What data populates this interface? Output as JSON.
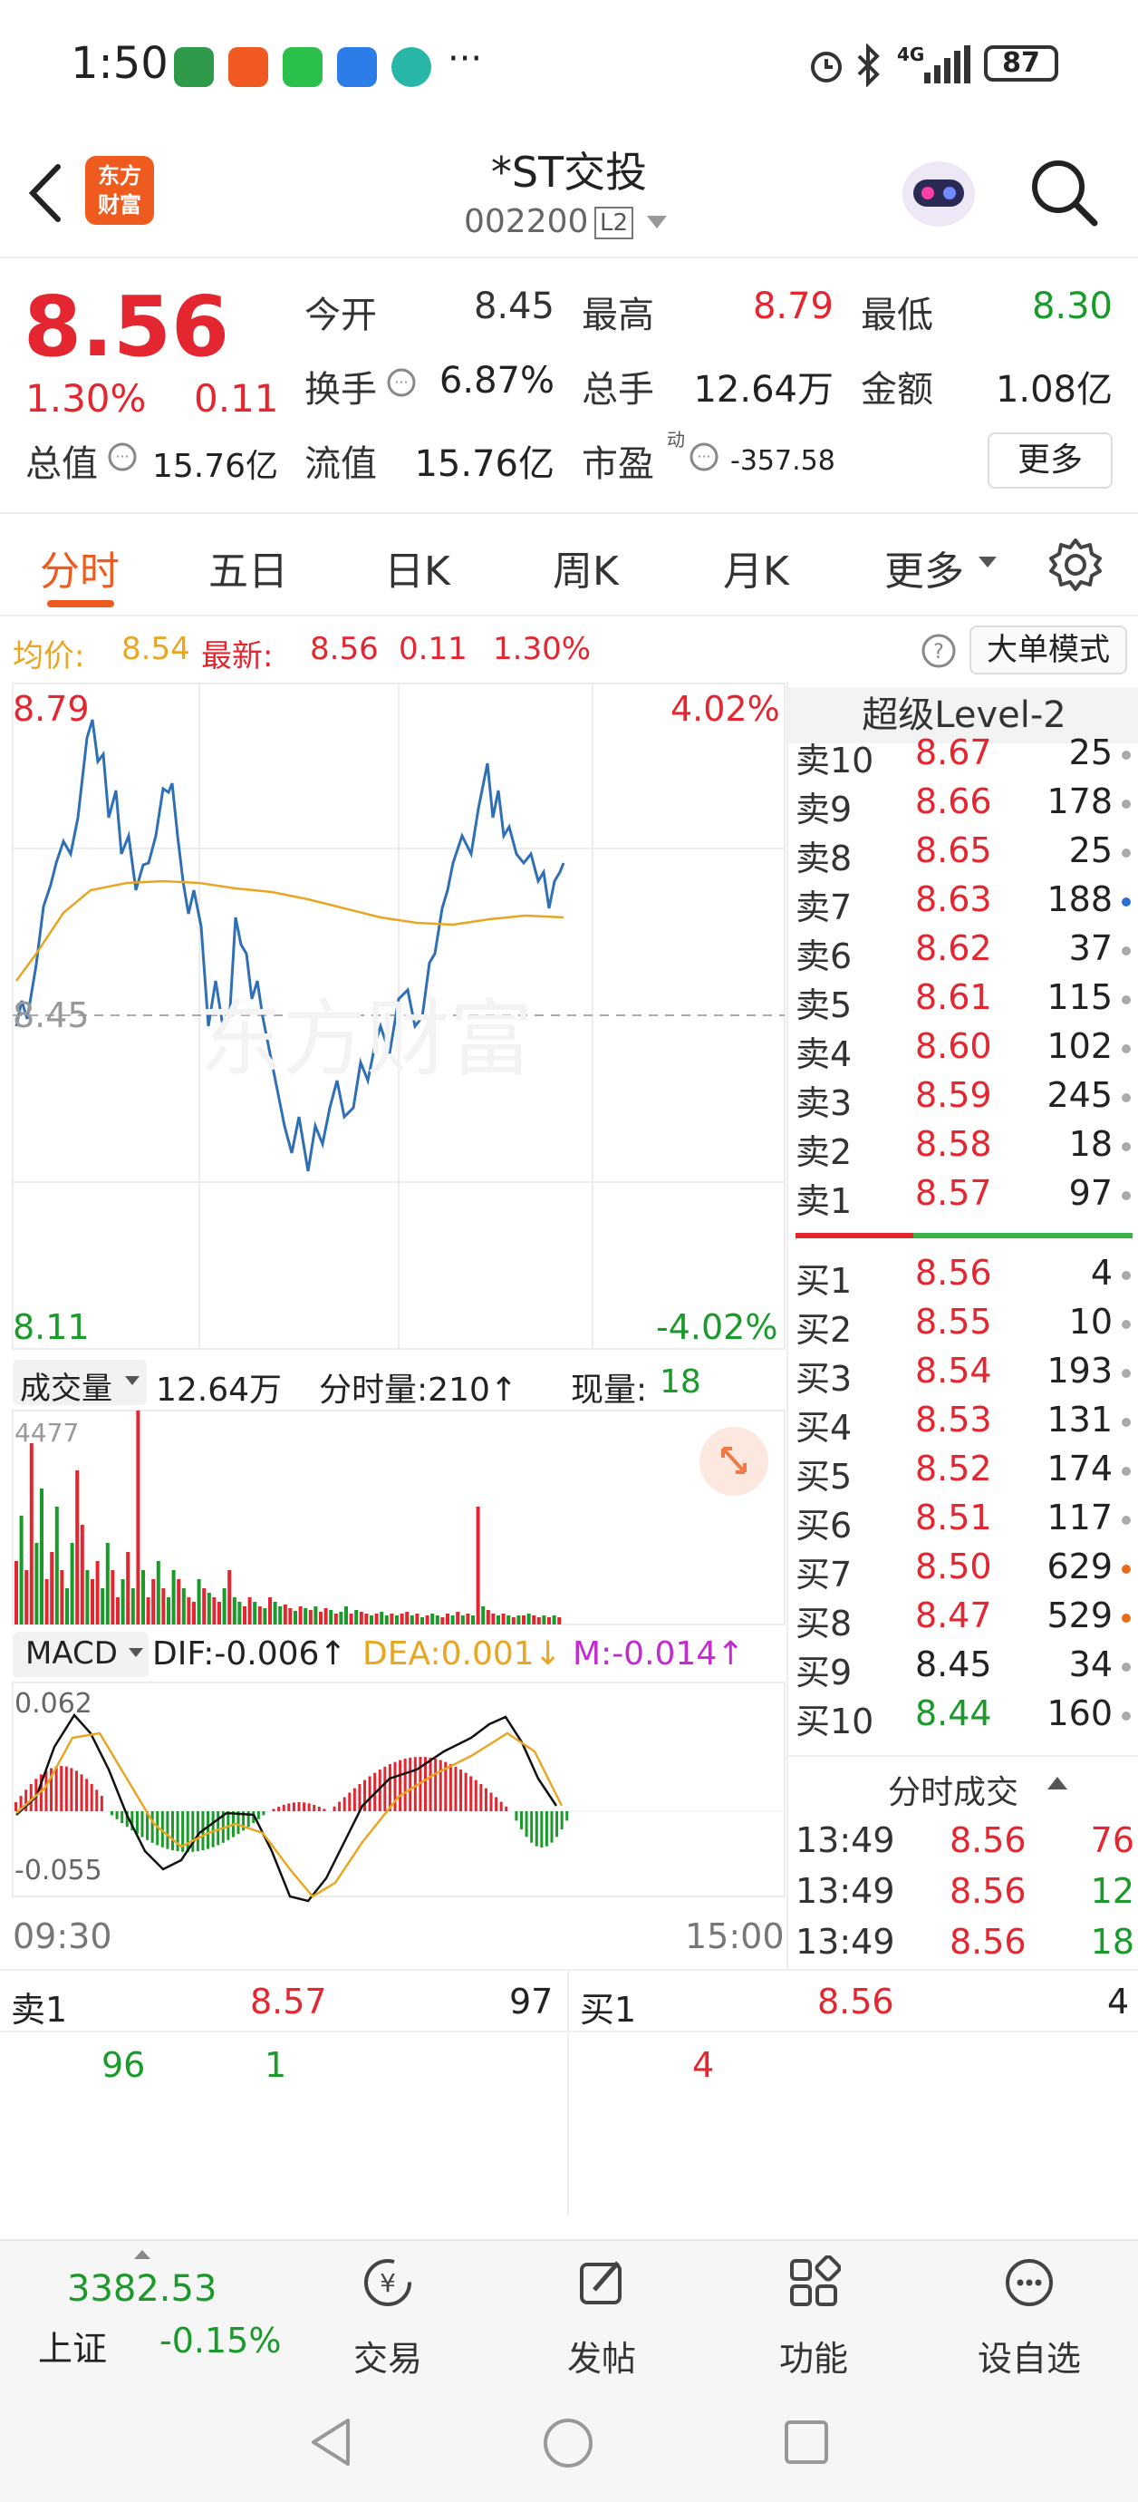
{
  "status": {
    "time": "1:50",
    "battery": "87",
    "network": "4G"
  },
  "header": {
    "logo_text_1": "东方",
    "logo_text_2": "财富",
    "stock_name": "*ST交投",
    "stock_code": "002200",
    "level_badge": "L2"
  },
  "quote": {
    "price": "8.56",
    "change_pct": "1.30%",
    "change": "0.11",
    "open_label": "今开",
    "open": "8.45",
    "high_label": "最高",
    "high": "8.79",
    "low_label": "最低",
    "low": "8.30",
    "turnover_label": "换手",
    "turnover": "6.87%",
    "volume_label": "总手",
    "volume": "12.64万",
    "amount_label": "金额",
    "amount": "1.08亿",
    "total_mv_label": "总值",
    "total_mv": "15.76亿",
    "float_mv_label": "流值",
    "float_mv": "15.76亿",
    "pe_label": "市盈",
    "pe_sup": "动",
    "pe": "-357.58",
    "more_button": "更多"
  },
  "tabs": [
    "分时",
    "五日",
    "日K",
    "周K",
    "月K",
    "更多"
  ],
  "infoline": {
    "avg_label": "均价:",
    "avg": "8.54",
    "latest_label": "最新:",
    "latest": "8.56",
    "latest_change": "0.11",
    "latest_pct": "1.30%",
    "mode_button": "大单模式"
  },
  "chart": {
    "price_top": "8.79",
    "pct_top": "4.02%",
    "price_mid": "8.45",
    "price_bottom": "8.11",
    "pct_bottom": "-4.02%",
    "watermark": "东方财富",
    "vol_label": "成交量",
    "vol_total": "12.64万",
    "vol_tick_label": "分时量:210↑",
    "vol_now_label": "现量:",
    "vol_now": "18",
    "vol_max": "4477",
    "macd_label": "MACD",
    "dif": "DIF:-0.006↑",
    "dea": "DEA:0.001↓",
    "m": "M:-0.014↑",
    "macd_top": "0.062",
    "macd_bottom": "-0.055",
    "time_start": "09:30",
    "time_end": "15:00"
  },
  "book": {
    "title": "超级Level-2",
    "sells": [
      {
        "label": "卖10",
        "price": "8.67",
        "vol": "25"
      },
      {
        "label": "卖9",
        "price": "8.66",
        "vol": "178"
      },
      {
        "label": "卖8",
        "price": "8.65",
        "vol": "25"
      },
      {
        "label": "卖7",
        "price": "8.63",
        "vol": "188"
      },
      {
        "label": "卖6",
        "price": "8.62",
        "vol": "37"
      },
      {
        "label": "卖5",
        "price": "8.61",
        "vol": "115"
      },
      {
        "label": "卖4",
        "price": "8.60",
        "vol": "102"
      },
      {
        "label": "卖3",
        "price": "8.59",
        "vol": "245"
      },
      {
        "label": "卖2",
        "price": "8.58",
        "vol": "18"
      },
      {
        "label": "卖1",
        "price": "8.57",
        "vol": "97"
      }
    ],
    "buys": [
      {
        "label": "买1",
        "price": "8.56",
        "vol": "4"
      },
      {
        "label": "买2",
        "price": "8.55",
        "vol": "10"
      },
      {
        "label": "买3",
        "price": "8.54",
        "vol": "193"
      },
      {
        "label": "买4",
        "price": "8.53",
        "vol": "131"
      },
      {
        "label": "买5",
        "price": "8.52",
        "vol": "174"
      },
      {
        "label": "买6",
        "price": "8.51",
        "vol": "117"
      },
      {
        "label": "买7",
        "price": "8.50",
        "vol": "629"
      },
      {
        "label": "买8",
        "price": "8.47",
        "vol": "529"
      },
      {
        "label": "买9",
        "price": "8.45",
        "vol": "34"
      },
      {
        "label": "买10",
        "price": "8.44",
        "vol": "160"
      }
    ],
    "trades_title": "分时成交",
    "trades": [
      {
        "time": "13:49",
        "price": "8.56",
        "vol": "76"
      },
      {
        "time": "13:49",
        "price": "8.56",
        "vol": "12"
      },
      {
        "time": "13:49",
        "price": "8.56",
        "vol": "18"
      }
    ]
  },
  "best": {
    "sell_label": "卖1",
    "sell_price": "8.57",
    "sell_vol": "97",
    "buy_label": "买1",
    "buy_price": "8.56",
    "buy_vol": "4",
    "sell_queue": [
      "96",
      "1"
    ],
    "buy_queue": [
      "4"
    ]
  },
  "bottomnav": {
    "index_value": "3382.53",
    "index_name": "上证",
    "index_pct": "-0.15%",
    "items": [
      "交易",
      "发帖",
      "功能",
      "设自选"
    ]
  }
}
